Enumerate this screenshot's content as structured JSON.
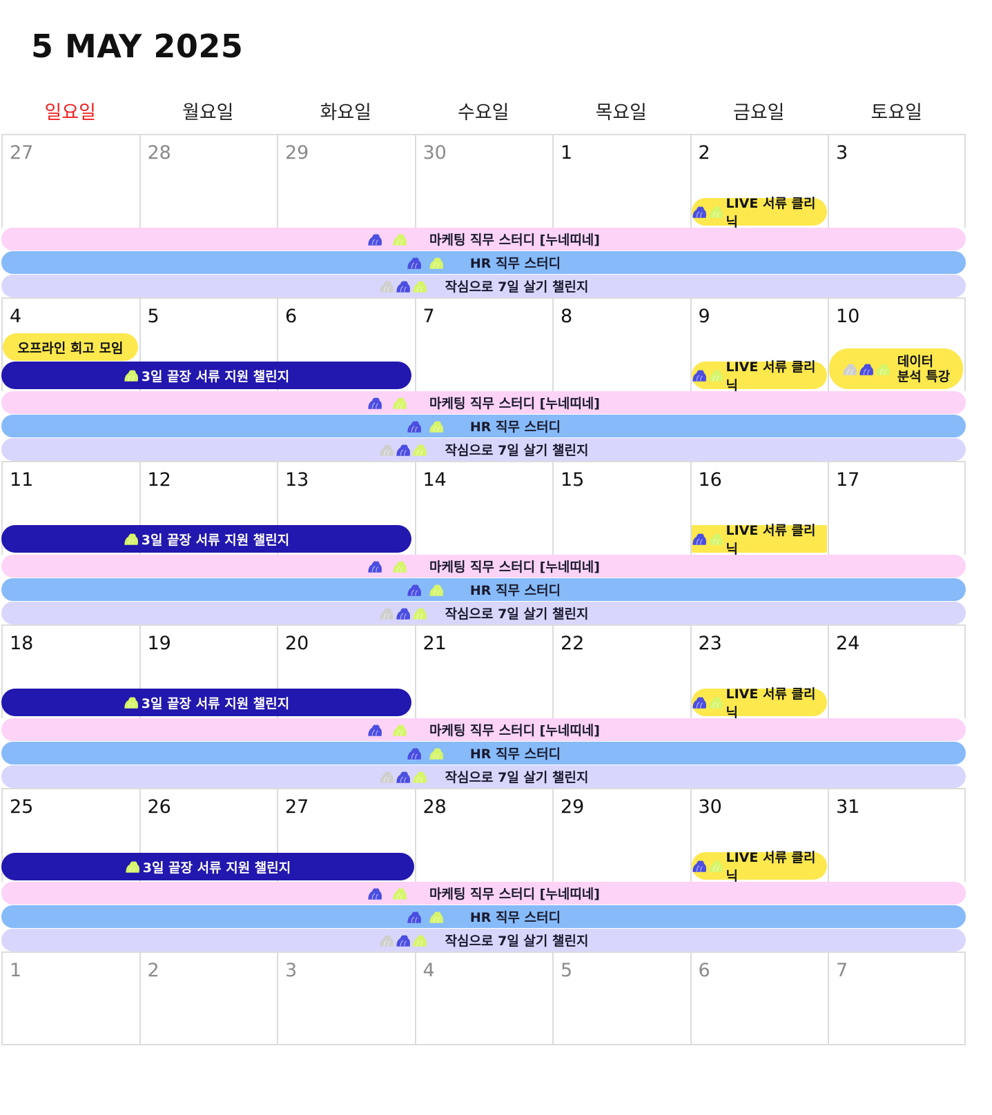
{
  "header": {
    "title": "5 MAY 2025"
  },
  "days_of_week": [
    "일요일",
    "월요일",
    "화요일",
    "수요일",
    "목요일",
    "금요일",
    "토요일"
  ],
  "weeks": [
    {
      "days": [
        {
          "n": "27",
          "muted": true
        },
        {
          "n": "28",
          "muted": true
        },
        {
          "n": "29",
          "muted": true
        },
        {
          "n": "30",
          "muted": true
        },
        {
          "n": "1"
        },
        {
          "n": "2"
        },
        {
          "n": "3"
        }
      ]
    },
    {
      "days": [
        {
          "n": "4"
        },
        {
          "n": "5"
        },
        {
          "n": "6"
        },
        {
          "n": "7"
        },
        {
          "n": "8"
        },
        {
          "n": "9"
        },
        {
          "n": "10"
        }
      ]
    },
    {
      "days": [
        {
          "n": "11"
        },
        {
          "n": "12"
        },
        {
          "n": "13"
        },
        {
          "n": "14"
        },
        {
          "n": "15"
        },
        {
          "n": "16"
        },
        {
          "n": "17"
        }
      ]
    },
    {
      "days": [
        {
          "n": "18"
        },
        {
          "n": "19"
        },
        {
          "n": "20"
        },
        {
          "n": "21"
        },
        {
          "n": "22"
        },
        {
          "n": "23"
        },
        {
          "n": "24"
        }
      ]
    },
    {
      "days": [
        {
          "n": "25"
        },
        {
          "n": "26"
        },
        {
          "n": "27"
        },
        {
          "n": "28"
        },
        {
          "n": "29"
        },
        {
          "n": "30"
        },
        {
          "n": "31"
        }
      ]
    },
    {
      "days": [
        {
          "n": "1",
          "muted": true
        },
        {
          "n": "2",
          "muted": true
        },
        {
          "n": "3",
          "muted": true
        },
        {
          "n": "4",
          "muted": true
        },
        {
          "n": "5",
          "muted": true
        },
        {
          "n": "6",
          "muted": true
        },
        {
          "n": "7",
          "muted": true
        }
      ]
    }
  ],
  "events": {
    "marketing": "마케팅 직무 스터디 [누네띠네]",
    "hr": "HR 직무 스터디",
    "challenge7": "작심으로 7일 살기 챌린지",
    "live": "LIVE 서류 클리닉",
    "challenge3": "3일 끝장 서류 지원 챌린지",
    "offline": "오프라인 회고 모임",
    "data_line1": "데이터",
    "data_line2": "분석 특강"
  },
  "colors": {
    "sunday": "#ef2020",
    "pink_bar": "#fdd3f7",
    "blue_bar": "#86baf9",
    "lavender_bar": "#d9d6fd",
    "yellow_pill": "#fde84e",
    "navy_pill": "#2217ae",
    "icon_blue": "#4b4ee0",
    "icon_lime": "#d6f56a",
    "icon_gray": "#cfcfcf"
  },
  "icons": [
    "blue-blob-icon",
    "lime-blob-icon",
    "gray-blob-icon"
  ]
}
